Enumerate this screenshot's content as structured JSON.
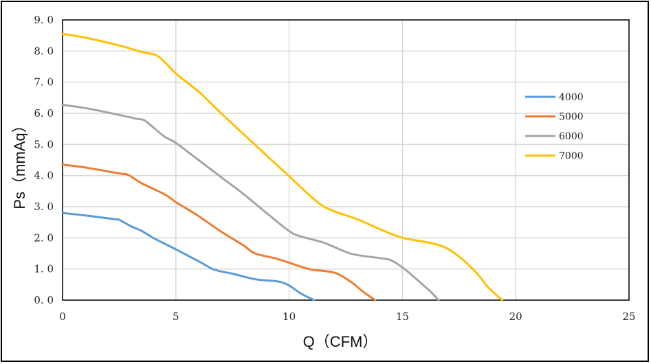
{
  "chart_data": {
    "type": "line",
    "xlabel": "Q（CFM）",
    "ylabel": "Ps（mmAq）",
    "xlim": [
      0,
      25
    ],
    "ylim": [
      0,
      9
    ],
    "x_ticks": [
      "0",
      "5",
      "10",
      "15",
      "20",
      "25"
    ],
    "y_ticks": [
      "0. 0",
      "1. 0",
      "2. 0",
      "3. 0",
      "4. 0",
      "5. 0",
      "6. 0",
      "7. 0",
      "8. 0",
      "9. 0"
    ],
    "grid": true,
    "legend_position": "right",
    "series": [
      {
        "name": "4000",
        "color": "#5b9bd5",
        "points": [
          [
            0,
            2.8
          ],
          [
            1,
            2.72
          ],
          [
            2.3,
            2.6
          ],
          [
            2.5,
            2.58
          ],
          [
            3,
            2.38
          ],
          [
            3.5,
            2.22
          ],
          [
            4,
            2.0
          ],
          [
            5,
            1.63
          ],
          [
            6,
            1.25
          ],
          [
            6.7,
            0.98
          ],
          [
            7.5,
            0.85
          ],
          [
            8.5,
            0.67
          ],
          [
            9.5,
            0.6
          ],
          [
            10,
            0.47
          ],
          [
            10.5,
            0.22
          ],
          [
            11.1,
            0.0
          ]
        ]
      },
      {
        "name": "5000",
        "color": "#ed7d31",
        "points": [
          [
            0,
            4.35
          ],
          [
            1,
            4.26
          ],
          [
            2.5,
            4.07
          ],
          [
            2.9,
            4.02
          ],
          [
            3.5,
            3.75
          ],
          [
            4.5,
            3.4
          ],
          [
            5,
            3.15
          ],
          [
            6,
            2.7
          ],
          [
            7,
            2.2
          ],
          [
            8,
            1.75
          ],
          [
            8.5,
            1.5
          ],
          [
            9.5,
            1.32
          ],
          [
            10.5,
            1.08
          ],
          [
            11,
            0.98
          ],
          [
            12,
            0.88
          ],
          [
            12.7,
            0.6
          ],
          [
            13.3,
            0.25
          ],
          [
            13.8,
            0.0
          ]
        ]
      },
      {
        "name": "6000",
        "color": "#a5a5a5",
        "points": [
          [
            0,
            6.27
          ],
          [
            1,
            6.17
          ],
          [
            2.5,
            5.95
          ],
          [
            3.3,
            5.82
          ],
          [
            3.6,
            5.78
          ],
          [
            4,
            5.55
          ],
          [
            4.5,
            5.25
          ],
          [
            5,
            5.05
          ],
          [
            6,
            4.5
          ],
          [
            7,
            3.95
          ],
          [
            8,
            3.4
          ],
          [
            9,
            2.8
          ],
          [
            10,
            2.22
          ],
          [
            10.5,
            2.05
          ],
          [
            11.5,
            1.85
          ],
          [
            12.5,
            1.55
          ],
          [
            13,
            1.45
          ],
          [
            14,
            1.35
          ],
          [
            14.5,
            1.28
          ],
          [
            15,
            1.05
          ],
          [
            15.5,
            0.75
          ],
          [
            16.2,
            0.3
          ],
          [
            16.6,
            0.0
          ]
        ]
      },
      {
        "name": "7000",
        "color": "#ffc000",
        "points": [
          [
            0,
            8.55
          ],
          [
            1,
            8.43
          ],
          [
            2.5,
            8.18
          ],
          [
            3.5,
            7.97
          ],
          [
            4.1,
            7.88
          ],
          [
            4.5,
            7.65
          ],
          [
            5,
            7.28
          ],
          [
            6,
            6.7
          ],
          [
            7,
            6.0
          ],
          [
            8,
            5.32
          ],
          [
            9,
            4.65
          ],
          [
            10,
            3.98
          ],
          [
            11,
            3.3
          ],
          [
            11.5,
            3.02
          ],
          [
            12,
            2.85
          ],
          [
            13,
            2.6
          ],
          [
            14,
            2.28
          ],
          [
            15,
            2.0
          ],
          [
            16,
            1.87
          ],
          [
            16.8,
            1.72
          ],
          [
            17.5,
            1.4
          ],
          [
            18.3,
            0.85
          ],
          [
            18.8,
            0.4
          ],
          [
            19.4,
            0.0
          ]
        ]
      }
    ]
  }
}
